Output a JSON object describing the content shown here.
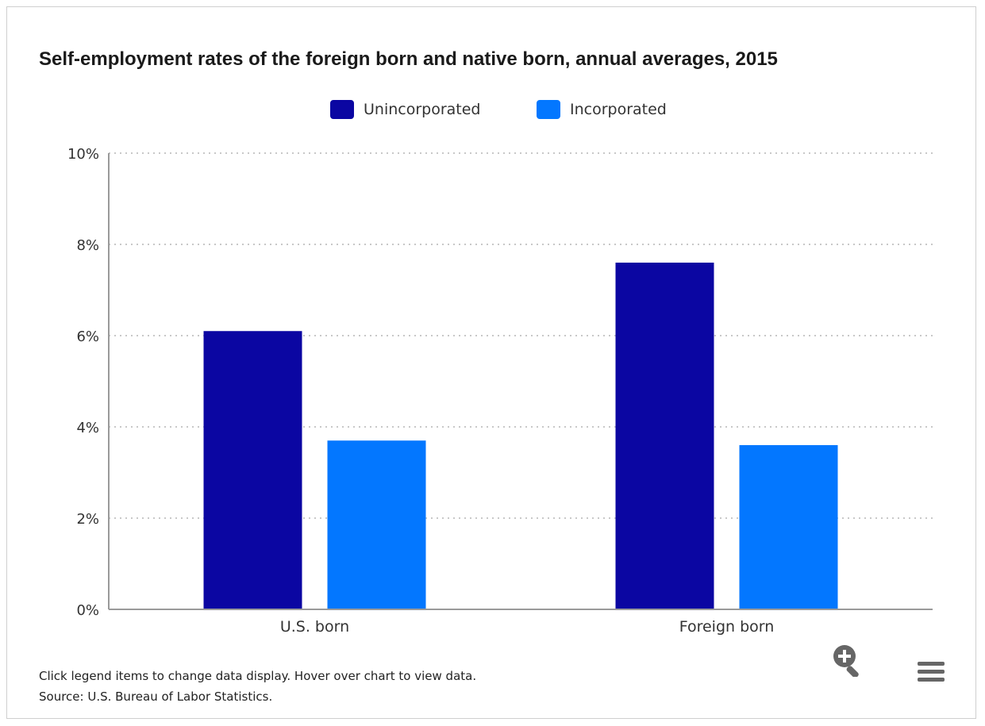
{
  "chart_data": {
    "type": "bar",
    "title": "Self-employment rates of the foreign born and native born, annual averages, 2015",
    "categories": [
      "U.S. born",
      "Foreign born"
    ],
    "series": [
      {
        "name": "Unincorporated",
        "values": [
          6.1,
          7.6
        ],
        "color": "#0b06a2"
      },
      {
        "name": "Incorporated",
        "values": [
          3.7,
          3.6
        ],
        "color": "#0377ff"
      }
    ],
    "ylim": [
      0,
      10
    ],
    "y_ticks": [
      "0%",
      "2%",
      "4%",
      "6%",
      "8%",
      "10%"
    ],
    "y_tick_values": [
      0,
      2,
      4,
      6,
      8,
      10
    ],
    "xlabel": "",
    "ylabel": "",
    "grid": true,
    "legend_position": "top-center"
  },
  "footer": {
    "instructions": "Click legend items to change data display. Hover over chart to view data.",
    "source": "Source: U.S. Bureau of Labor Statistics."
  },
  "controls": {
    "zoom_icon": "magnifier-plus-icon",
    "menu_icon": "hamburger-menu-icon",
    "icon_color": "#666666"
  }
}
